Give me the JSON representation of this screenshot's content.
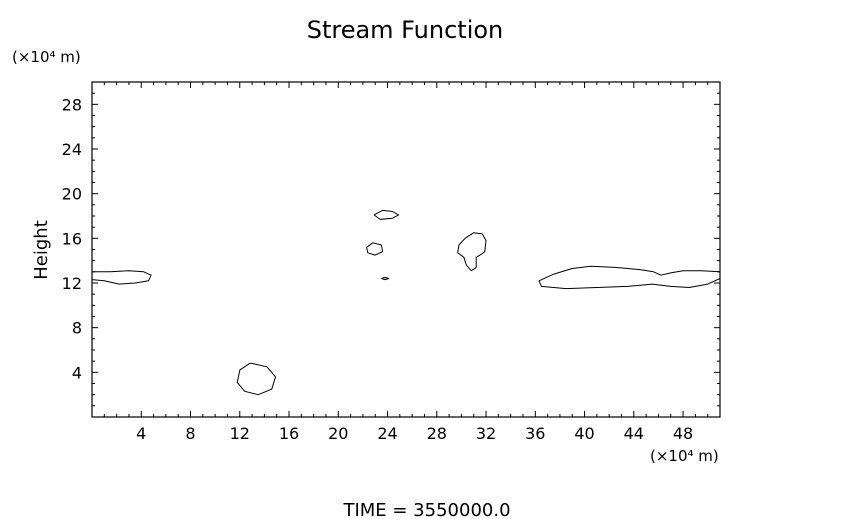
{
  "chart_data": {
    "type": "contour",
    "title": "Stream Function",
    "ylabel": "Height",
    "x_unit_label": "(×10⁴ m)",
    "y_unit_label": "(×10⁴ m)",
    "xlim": [
      0,
      51
    ],
    "ylim": [
      0,
      30
    ],
    "x_ticks": [
      4,
      8,
      12,
      16,
      20,
      24,
      28,
      32,
      36,
      40,
      44,
      48
    ],
    "y_ticks": [
      4,
      8,
      12,
      16,
      20,
      24,
      28
    ],
    "footer": "TIME  =  3550000.0",
    "contours": [
      {
        "id": "left-edge-band",
        "points": [
          [
            0,
            13.0
          ],
          [
            1.5,
            13.0
          ],
          [
            3.0,
            13.1
          ],
          [
            4.2,
            13.0
          ],
          [
            4.8,
            12.7
          ],
          [
            4.6,
            12.2
          ],
          [
            3.5,
            12.0
          ],
          [
            2.2,
            11.9
          ],
          [
            1.0,
            12.2
          ],
          [
            0,
            12.3
          ]
        ]
      },
      {
        "id": "low-cell",
        "points": [
          [
            13.0,
            4.8
          ],
          [
            14.2,
            4.5
          ],
          [
            14.9,
            3.6
          ],
          [
            14.6,
            2.5
          ],
          [
            13.5,
            2.0
          ],
          [
            12.4,
            2.3
          ],
          [
            11.8,
            3.1
          ],
          [
            12.0,
            4.2
          ],
          [
            12.8,
            4.8
          ],
          [
            13.0,
            4.8
          ]
        ]
      },
      {
        "id": "upper-small-cell",
        "points": [
          [
            22.9,
            18.1
          ],
          [
            23.6,
            18.5
          ],
          [
            24.4,
            18.4
          ],
          [
            24.9,
            18.1
          ],
          [
            24.4,
            17.8
          ],
          [
            23.4,
            17.7
          ],
          [
            22.9,
            18.1
          ]
        ]
      },
      {
        "id": "mid-small-cell",
        "points": [
          [
            22.3,
            15.2
          ],
          [
            22.8,
            15.6
          ],
          [
            23.5,
            15.4
          ],
          [
            23.6,
            14.8
          ],
          [
            23.0,
            14.5
          ],
          [
            22.4,
            14.7
          ],
          [
            22.3,
            15.2
          ]
        ]
      },
      {
        "id": "tiny-cell",
        "points": [
          [
            23.5,
            12.4
          ],
          [
            23.8,
            12.5
          ],
          [
            24.1,
            12.4
          ],
          [
            23.8,
            12.3
          ],
          [
            23.5,
            12.4
          ]
        ]
      },
      {
        "id": "right-mid-cell",
        "points": [
          [
            29.8,
            15.4
          ],
          [
            30.3,
            16.0
          ],
          [
            31.0,
            16.5
          ],
          [
            31.7,
            16.4
          ],
          [
            32.0,
            15.8
          ],
          [
            31.9,
            14.8
          ],
          [
            31.5,
            14.5
          ],
          [
            31.2,
            14.3
          ],
          [
            31.2,
            13.4
          ],
          [
            30.8,
            13.1
          ],
          [
            30.4,
            13.6
          ],
          [
            30.2,
            14.3
          ],
          [
            29.7,
            14.7
          ],
          [
            29.8,
            15.4
          ]
        ]
      },
      {
        "id": "right-edge-band",
        "points": [
          [
            51,
            13.0
          ],
          [
            49.5,
            13.1
          ],
          [
            48.0,
            13.1
          ],
          [
            47.0,
            12.9
          ],
          [
            46.2,
            12.7
          ],
          [
            45.6,
            13.0
          ],
          [
            44.5,
            13.2
          ],
          [
            42.5,
            13.4
          ],
          [
            40.5,
            13.5
          ],
          [
            39.0,
            13.3
          ],
          [
            37.5,
            12.8
          ],
          [
            36.3,
            12.2
          ],
          [
            36.5,
            11.7
          ],
          [
            38.5,
            11.5
          ],
          [
            41.0,
            11.6
          ],
          [
            43.5,
            11.7
          ],
          [
            45.5,
            11.9
          ],
          [
            47.0,
            11.7
          ],
          [
            48.5,
            11.6
          ],
          [
            50.0,
            11.9
          ],
          [
            51,
            12.4
          ]
        ]
      }
    ]
  }
}
